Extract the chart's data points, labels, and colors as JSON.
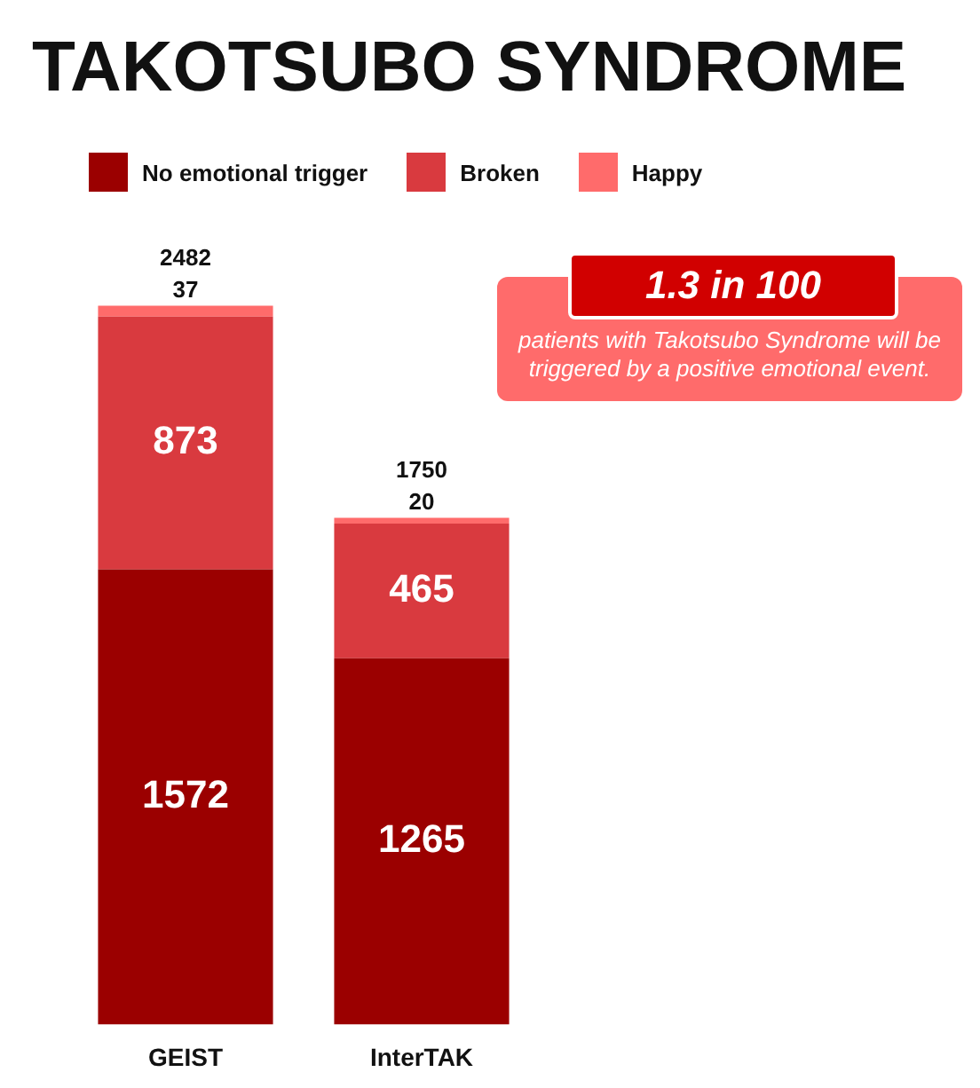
{
  "chart_data": {
    "type": "bar",
    "title": "TAKOTSUBO SYNDROME",
    "categories": [
      "GEIST",
      "InterTAK"
    ],
    "stacked": true,
    "legend": "top",
    "data_labels": true,
    "totals": [
      "2482",
      "1750"
    ],
    "series": [
      {
        "name": "No emotional trigger",
        "color": "#9b0000",
        "values": [
          1572,
          1265
        ]
      },
      {
        "name": "Broken",
        "color": "#d93a3f",
        "values": [
          873,
          465
        ]
      },
      {
        "name": "Happy",
        "color": "#ff6b6b",
        "values": [
          37,
          20
        ]
      }
    ],
    "annotations": [
      "1.3 in 100",
      "patients with Takotsubo Syndrome will be triggered by a positive emotional event."
    ]
  }
}
